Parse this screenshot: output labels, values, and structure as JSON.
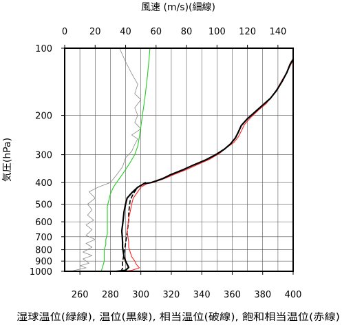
{
  "chart_data": {
    "type": "line",
    "title": "",
    "top_axis": {
      "label": "風速 (m/s)(細線)",
      "range": [
        0,
        150
      ],
      "ticks": [
        0,
        20,
        40,
        60,
        80,
        100,
        120,
        140
      ],
      "tick_labels": [
        "0",
        "20",
        "40",
        "60",
        "80",
        "100",
        "120",
        "140"
      ]
    },
    "bottom_axis": {
      "label": "湿球温位(緑線), 温位(黒線), 相当温位(破線), 飽和相当温位(赤線)",
      "range": [
        250,
        400
      ],
      "ticks": [
        260,
        280,
        300,
        320,
        340,
        360,
        380,
        400
      ],
      "tick_labels": [
        "260",
        "280",
        "300",
        "320",
        "340",
        "360",
        "380",
        "400"
      ]
    },
    "y_axis": {
      "label": "気圧(hPa)",
      "scale": "log",
      "reversed": true,
      "range": [
        100,
        1000
      ],
      "ticks": [
        100,
        200,
        300,
        400,
        500,
        600,
        700,
        800,
        900,
        1000
      ],
      "tick_labels": [
        "100",
        "200",
        "300",
        "400",
        "500",
        "600",
        "700",
        "800",
        "900",
        "1000"
      ]
    },
    "grid": true,
    "series": [
      {
        "key": "wind_speed",
        "axis": "top",
        "color": "#888888",
        "style": "thin",
        "points": [
          [
            4,
            1000
          ],
          [
            8,
            985
          ],
          [
            14,
            965
          ],
          [
            10,
            945
          ],
          [
            16,
            920
          ],
          [
            12,
            880
          ],
          [
            18,
            850
          ],
          [
            12,
            820
          ],
          [
            18,
            780
          ],
          [
            14,
            750
          ],
          [
            20,
            720
          ],
          [
            14,
            690
          ],
          [
            18,
            650
          ],
          [
            14,
            620
          ],
          [
            19,
            590
          ],
          [
            15,
            560
          ],
          [
            18,
            530
          ],
          [
            15,
            500
          ],
          [
            20,
            470
          ],
          [
            16,
            440
          ],
          [
            22,
            420
          ],
          [
            28,
            405
          ],
          [
            30,
            400
          ],
          [
            34,
            370
          ],
          [
            38,
            340
          ],
          [
            40,
            310
          ],
          [
            44,
            290
          ],
          [
            46,
            270
          ],
          [
            48,
            255
          ],
          [
            44,
            245
          ],
          [
            50,
            230
          ],
          [
            46,
            215
          ],
          [
            48,
            200
          ],
          [
            46,
            185
          ],
          [
            50,
            170
          ],
          [
            46,
            160
          ],
          [
            48,
            145
          ],
          [
            44,
            130
          ],
          [
            40,
            115
          ],
          [
            36,
            100
          ]
        ]
      },
      {
        "key": "wet_bulb_potential_temperature",
        "axis": "bottom",
        "color": "#22cc22",
        "style": "solid",
        "points": [
          [
            274,
            1000
          ],
          [
            275,
            950
          ],
          [
            276,
            900
          ],
          [
            276,
            850
          ],
          [
            276,
            800
          ],
          [
            277,
            760
          ],
          [
            277,
            720
          ],
          [
            278,
            680
          ],
          [
            278,
            640
          ],
          [
            278,
            600
          ],
          [
            278,
            570
          ],
          [
            278,
            540
          ],
          [
            278,
            510
          ],
          [
            279,
            480
          ],
          [
            280,
            450
          ],
          [
            282,
            420
          ],
          [
            284,
            400
          ],
          [
            287,
            375
          ],
          [
            290,
            350
          ],
          [
            293,
            325
          ],
          [
            296,
            300
          ],
          [
            298,
            275
          ],
          [
            299,
            250
          ],
          [
            300,
            225
          ],
          [
            301,
            200
          ],
          [
            302,
            180
          ],
          [
            303,
            160
          ],
          [
            304,
            140
          ],
          [
            305,
            120
          ],
          [
            306,
            100
          ]
        ]
      },
      {
        "key": "equivalent_potential_temperature",
        "axis": "bottom",
        "color": "#000000",
        "style": "dashed",
        "points": [
          [
            287,
            1000
          ],
          [
            288,
            970
          ],
          [
            288,
            940
          ],
          [
            288,
            910
          ],
          [
            288.5,
            870
          ],
          [
            289,
            830
          ],
          [
            289.5,
            790
          ],
          [
            290,
            750
          ],
          [
            290.5,
            710
          ],
          [
            291,
            670
          ],
          [
            291.5,
            630
          ],
          [
            292,
            590
          ],
          [
            292,
            550
          ],
          [
            292.5,
            510
          ],
          [
            293,
            480
          ],
          [
            295,
            450
          ],
          [
            298,
            420
          ],
          [
            303,
            400
          ]
        ]
      },
      {
        "key": "saturated_equivalent_potential_temperature",
        "axis": "bottom",
        "color": "#ff2222",
        "style": "solid",
        "points": [
          [
            289,
            1000
          ],
          [
            294,
            990
          ],
          [
            299,
            965
          ],
          [
            297,
            930
          ],
          [
            296,
            900
          ],
          [
            294,
            860
          ],
          [
            293,
            820
          ],
          [
            292,
            780
          ],
          [
            292,
            740
          ],
          [
            291.5,
            700
          ],
          [
            291,
            660
          ],
          [
            291.5,
            620
          ],
          [
            292,
            580
          ],
          [
            293,
            540
          ],
          [
            294,
            500
          ],
          [
            295,
            470
          ],
          [
            298,
            440
          ],
          [
            300,
            420
          ],
          [
            304,
            405
          ],
          [
            308,
            400
          ],
          [
            315,
            385
          ],
          [
            322,
            368
          ],
          [
            330,
            350
          ],
          [
            337,
            333
          ],
          [
            345,
            315
          ],
          [
            352,
            295
          ],
          [
            356,
            280
          ],
          [
            361,
            265
          ],
          [
            364,
            250
          ],
          [
            366,
            235
          ],
          [
            368,
            220
          ],
          [
            372,
            205
          ],
          [
            377,
            190
          ],
          [
            382,
            178
          ],
          [
            386,
            165
          ],
          [
            390,
            150
          ],
          [
            393,
            138
          ],
          [
            396,
            128
          ],
          [
            398,
            120
          ],
          [
            400,
            113
          ]
        ]
      },
      {
        "key": "potential_temperature",
        "axis": "bottom",
        "color": "#000000",
        "style": "bold",
        "points": [
          [
            284,
            1000
          ],
          [
            290,
            990
          ],
          [
            292,
            960
          ],
          [
            291,
            930
          ],
          [
            290,
            900
          ],
          [
            289,
            860
          ],
          [
            288.5,
            820
          ],
          [
            288,
            780
          ],
          [
            288,
            740
          ],
          [
            287.8,
            700
          ],
          [
            287.5,
            660
          ],
          [
            288,
            620
          ],
          [
            288.5,
            580
          ],
          [
            289,
            540
          ],
          [
            290,
            500
          ],
          [
            291,
            470
          ],
          [
            294,
            445
          ],
          [
            298,
            420
          ],
          [
            302,
            405
          ],
          [
            307,
            400
          ],
          [
            314,
            385
          ],
          [
            320,
            368
          ],
          [
            328,
            350
          ],
          [
            335,
            333
          ],
          [
            343,
            316
          ],
          [
            350,
            298
          ],
          [
            355,
            283
          ],
          [
            359,
            268
          ],
          [
            362,
            253
          ],
          [
            364,
            238
          ],
          [
            366,
            222
          ],
          [
            370,
            207
          ],
          [
            375,
            193
          ],
          [
            380,
            180
          ],
          [
            385,
            168
          ],
          [
            389,
            155
          ],
          [
            393,
            140
          ],
          [
            396,
            128
          ],
          [
            398,
            118
          ],
          [
            400,
            112
          ]
        ]
      }
    ]
  }
}
